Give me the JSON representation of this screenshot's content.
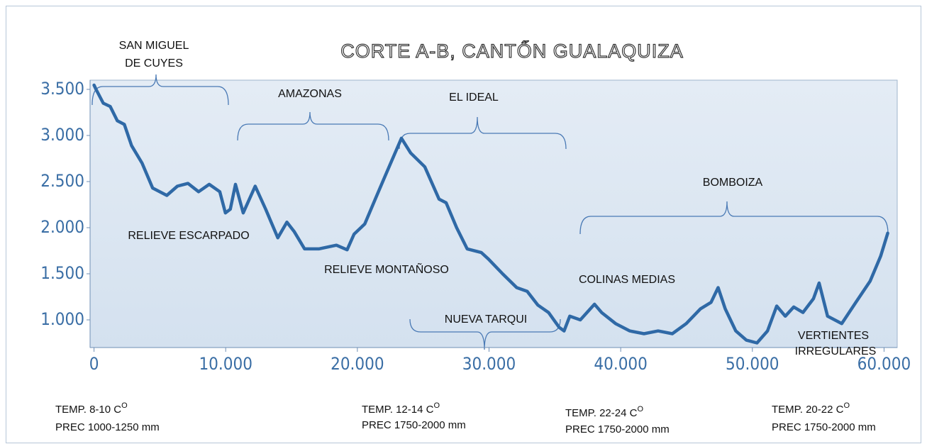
{
  "chart_data": {
    "type": "line",
    "title": "CORTE A-B, CANTŐN GUALAQUIZA",
    "x": [
      0,
      150,
      700,
      1230,
      1770,
      2300,
      2850,
      3650,
      4450,
      5530,
      6330,
      7140,
      7940,
      8750,
      9550,
      9980,
      10350,
      10740,
      11330,
      12240,
      13040,
      13960,
      14650,
      15190,
      15990,
      17070,
      18410,
      19220,
      19750,
      20560,
      21360,
      22170,
      23350,
      24050,
      25120,
      26200,
      26740,
      27540,
      28340,
      29420,
      29950,
      31030,
      32100,
      32900,
      33710,
      34520,
      35320,
      35700,
      36130,
      36930,
      38010,
      38550,
      39610,
      40690,
      41770,
      42840,
      43920,
      44980,
      46060,
      46860,
      47400,
      47940,
      48740,
      49540,
      50350,
      51150,
      51850,
      52500,
      53140,
      53840,
      54640,
      55070,
      55710,
      56790,
      57860,
      58940,
      59740,
      60280
    ],
    "values": [
      3546,
      3500,
      3350,
      3315,
      3160,
      3120,
      2890,
      2700,
      2430,
      2350,
      2450,
      2480,
      2390,
      2470,
      2390,
      2160,
      2200,
      2470,
      2160,
      2450,
      2200,
      1890,
      2060,
      1960,
      1770,
      1770,
      1810,
      1760,
      1930,
      2040,
      2310,
      2580,
      2970,
      2810,
      2660,
      2310,
      2270,
      2000,
      1770,
      1730,
      1660,
      1500,
      1350,
      1310,
      1160,
      1080,
      920,
      880,
      1040,
      1000,
      1170,
      1080,
      960,
      880,
      850,
      880,
      850,
      960,
      1120,
      1190,
      1350,
      1120,
      880,
      780,
      750,
      880,
      1150,
      1040,
      1140,
      1080,
      1230,
      1400,
      1040,
      960,
      1190,
      1420,
      1690,
      1940
    ],
    "color": "#2f69a6",
    "xlim": [
      -300,
      61000
    ],
    "ylim": [
      700,
      3600
    ],
    "xticks": [
      0,
      {
        "value": 10000,
        "label": "10.000"
      },
      {
        "value": 20000,
        "label": "20.000"
      },
      {
        "value": 30000,
        "label": "30.000"
      },
      {
        "value": 40000,
        "label": "40.000"
      },
      {
        "value": 50000,
        "label": "50.000"
      },
      {
        "value": 60000,
        "label": "60.000"
      }
    ],
    "yticks": [
      {
        "value": 1000,
        "label": "1.000"
      },
      {
        "value": 1500,
        "label": "1.500"
      },
      {
        "value": 2000,
        "label": "2.000"
      },
      {
        "value": 2500,
        "label": "2.500"
      },
      {
        "value": 3000,
        "label": "3.000"
      },
      {
        "value": 3500,
        "label": "3.500"
      }
    ],
    "annotations": [
      "SAN MIGUEL",
      "DE CUYES",
      "AMAZONAS",
      "EL IDEAL",
      "BOMBOIZA",
      "RELIEVE ESCARPADO",
      "RELIEVE MONTAÑOSO",
      "COLINAS MEDIAS",
      "NUEVA TARQUI",
      "VERTIENTES",
      "IRREGULARES"
    ],
    "footer": [
      {
        "temp": "TEMP. 8-10 C",
        "sup": "O",
        "prec": "PREC 1000-1250 mm"
      },
      {
        "temp": "TEMP. 12-14 C",
        "sup": "O",
        "prec": "PREC 1750-2000 mm"
      },
      {
        "temp": "TEMP. 22-24 C",
        "sup": "O",
        "prec": "PREC 1750-2000 mm"
      },
      {
        "temp": "TEMP.  20-22 C",
        "sup": "O",
        "prec": "PREC 1750-2000 mm"
      }
    ]
  }
}
